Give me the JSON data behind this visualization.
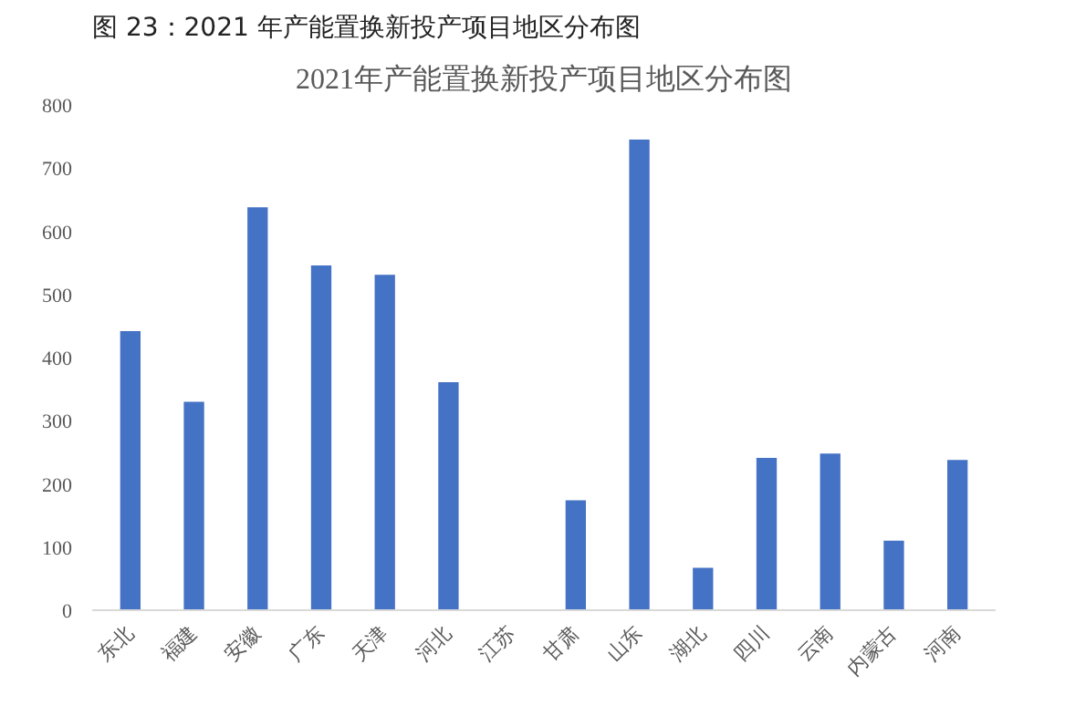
{
  "chart_data": {
    "type": "bar",
    "title": "图 23：2021 年产能置换新投产项目地区分布图",
    "subtitle": "2021年产能置换新投产项目地区分布图",
    "categories": [
      "东北",
      "福建",
      "安徽",
      "广东",
      "天津",
      "河北",
      "江苏",
      "甘肃",
      "山东",
      "湖北",
      "四川",
      "云南",
      "内蒙古",
      "河南"
    ],
    "values": [
      442,
      330,
      638,
      546,
      531,
      361,
      0,
      174,
      745,
      67,
      241,
      248,
      110,
      238
    ],
    "color": "#4472c4",
    "ylim": [
      0,
      800
    ],
    "yticks": [
      0,
      100,
      200,
      300,
      400,
      500,
      600,
      700,
      800
    ],
    "grid": false
  }
}
